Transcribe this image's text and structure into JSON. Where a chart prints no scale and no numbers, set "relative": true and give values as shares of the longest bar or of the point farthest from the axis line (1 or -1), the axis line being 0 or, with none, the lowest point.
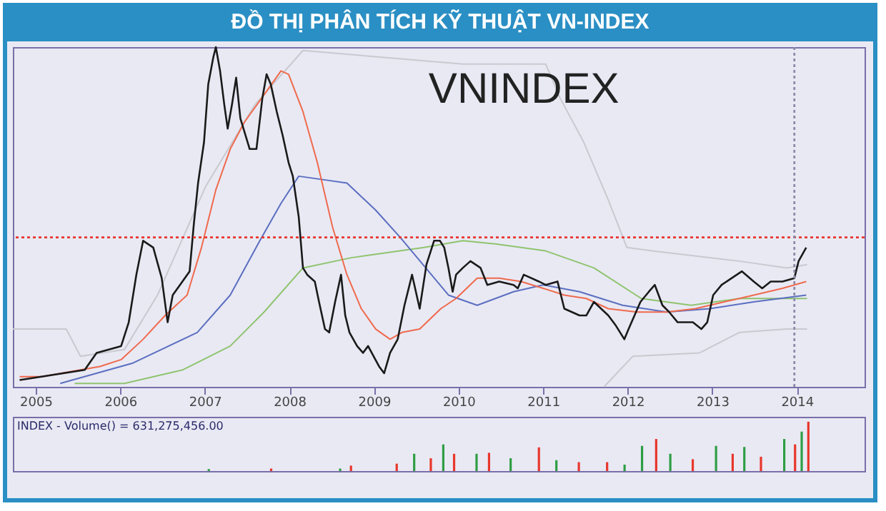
{
  "chart_data": [
    {
      "type": "line",
      "title": "ĐỒ THỊ PHÂN TÍCH KỸ THUẬT VN-INDEX",
      "annotations": [
        "VNINDEX"
      ],
      "relative": true,
      "xlim": [
        2004.73,
        2014.8
      ],
      "xticks": [
        2005,
        2006,
        2007,
        2008,
        2009,
        2010,
        2011,
        2012,
        2013,
        2014
      ],
      "tick_labels": "x",
      "grid": false,
      "series": [
        {
          "color": "#c9c9cf",
          "x": [
            2004.73,
            2005.36,
            2005.53,
            2006.05,
            2006.44,
            2007.01,
            2007.59,
            2008.16,
            2010.05,
            2011.03,
            2011.2,
            2011.48,
            2011.77,
            2011.99,
            2012.29,
            2013.32,
            2013.88,
            2014.12
          ],
          "values": [
            0.17,
            0.17,
            0.09,
            0.11,
            0.27,
            0.59,
            0.83,
            0.99,
            0.95,
            0.95,
            0.85,
            0.72,
            0.55,
            0.41,
            0.4,
            0.37,
            0.35,
            0.36
          ]
        },
        {
          "color": "#c9c9cf",
          "x": [
            2011.72,
            2012.06,
            2012.85,
            2013.32,
            2013.88,
            2014.12
          ],
          "values": [
            0.0,
            0.09,
            0.1,
            0.16,
            0.17,
            0.17
          ]
        },
        {
          "color": "#8fc46e",
          "x": [
            2005.46,
            2006.05,
            2006.74,
            2007.3,
            2007.7,
            2008.16,
            2008.73,
            2009.59,
            2010.05,
            2010.45,
            2011.03,
            2011.6,
            2012.16,
            2012.75,
            2013.32,
            2014.12
          ],
          "values": [
            0.01,
            0.01,
            0.05,
            0.12,
            0.22,
            0.35,
            0.38,
            0.41,
            0.43,
            0.42,
            0.4,
            0.35,
            0.26,
            0.24,
            0.26,
            0.26
          ]
        },
        {
          "color": "#5b6fc0",
          "x": [
            2005.29,
            2006.15,
            2006.91,
            2007.3,
            2007.65,
            2007.9,
            2008.11,
            2008.68,
            2009.02,
            2009.31,
            2009.88,
            2010.22,
            2010.65,
            2011.0,
            2011.43,
            2011.94,
            2012.46,
            2012.97,
            2013.49,
            2014.11
          ],
          "values": [
            0.01,
            0.07,
            0.16,
            0.27,
            0.43,
            0.54,
            0.62,
            0.6,
            0.52,
            0.44,
            0.27,
            0.24,
            0.28,
            0.3,
            0.28,
            0.24,
            0.22,
            0.23,
            0.25,
            0.27
          ]
        },
        {
          "color": "#ef6a4c",
          "x": [
            2004.81,
            2005.07,
            2005.76,
            2006.01,
            2006.27,
            2006.53,
            2006.79,
            2006.96,
            2007.13,
            2007.3,
            2007.47,
            2007.73,
            2007.9,
            2007.99,
            2008.16,
            2008.33,
            2008.51,
            2008.68,
            2008.85,
            2009.02,
            2009.19,
            2009.33,
            2009.54,
            2009.79,
            2009.97,
            2010.22,
            2010.48,
            2010.74,
            2011.0,
            2011.25,
            2011.51,
            2011.77,
            2012.11,
            2012.46,
            2012.8,
            2013.14,
            2013.49,
            2013.83,
            2014.11
          ],
          "values": [
            0.03,
            0.03,
            0.06,
            0.08,
            0.14,
            0.21,
            0.27,
            0.41,
            0.58,
            0.7,
            0.78,
            0.87,
            0.93,
            0.92,
            0.81,
            0.66,
            0.47,
            0.33,
            0.23,
            0.17,
            0.14,
            0.16,
            0.17,
            0.23,
            0.26,
            0.32,
            0.32,
            0.31,
            0.29,
            0.27,
            0.26,
            0.23,
            0.22,
            0.22,
            0.23,
            0.25,
            0.27,
            0.29,
            0.31
          ]
        },
        {
          "color": "#1a1a1a",
          "x": [
            2004.81,
            2005.07,
            2005.58,
            2005.72,
            2006.01,
            2006.1,
            2006.19,
            2006.27,
            2006.39,
            2006.49,
            2006.56,
            2006.62,
            2006.82,
            2006.87,
            2006.92,
            2006.99,
            2007.04,
            2007.1,
            2007.13,
            2007.18,
            2007.23,
            2007.27,
            2007.32,
            2007.37,
            2007.42,
            2007.53,
            2007.61,
            2007.68,
            2007.73,
            2007.78,
            2007.85,
            2007.92,
            2007.99,
            2008.04,
            2008.11,
            2008.16,
            2008.21,
            2008.3,
            2008.35,
            2008.42,
            2008.47,
            2008.54,
            2008.61,
            2008.66,
            2008.71,
            2008.8,
            2008.87,
            2008.93,
            2009.06,
            2009.12,
            2009.19,
            2009.28,
            2009.36,
            2009.45,
            2009.54,
            2009.62,
            2009.71,
            2009.78,
            2009.83,
            2009.88,
            2009.93,
            2009.97,
            2010.05,
            2010.14,
            2010.26,
            2010.34,
            2010.48,
            2010.65,
            2010.7,
            2010.77,
            2010.95,
            2011.03,
            2011.17,
            2011.25,
            2011.43,
            2011.51,
            2011.6,
            2011.77,
            2011.86,
            2011.96,
            2012.01,
            2012.08,
            2012.15,
            2012.25,
            2012.32,
            2012.41,
            2012.49,
            2012.59,
            2012.77,
            2012.87,
            2012.94,
            2013.01,
            2013.11,
            2013.23,
            2013.35,
            2013.49,
            2013.59,
            2013.69,
            2013.83,
            2013.97,
            2014.02,
            2014.11
          ],
          "values": [
            0.02,
            0.03,
            0.05,
            0.1,
            0.12,
            0.19,
            0.33,
            0.43,
            0.41,
            0.32,
            0.19,
            0.27,
            0.34,
            0.48,
            0.6,
            0.72,
            0.89,
            0.97,
            1.0,
            0.93,
            0.83,
            0.76,
            0.83,
            0.91,
            0.79,
            0.7,
            0.7,
            0.85,
            0.92,
            0.89,
            0.81,
            0.74,
            0.66,
            0.62,
            0.5,
            0.35,
            0.33,
            0.31,
            0.25,
            0.17,
            0.16,
            0.25,
            0.33,
            0.21,
            0.16,
            0.12,
            0.1,
            0.12,
            0.06,
            0.04,
            0.1,
            0.14,
            0.24,
            0.33,
            0.23,
            0.36,
            0.43,
            0.43,
            0.41,
            0.35,
            0.28,
            0.33,
            0.35,
            0.37,
            0.35,
            0.3,
            0.31,
            0.3,
            0.29,
            0.33,
            0.31,
            0.3,
            0.31,
            0.23,
            0.21,
            0.21,
            0.25,
            0.21,
            0.18,
            0.14,
            0.17,
            0.21,
            0.25,
            0.28,
            0.3,
            0.24,
            0.22,
            0.19,
            0.19,
            0.17,
            0.19,
            0.27,
            0.3,
            0.32,
            0.34,
            0.31,
            0.29,
            0.31,
            0.31,
            0.32,
            0.37,
            0.41
          ]
        }
      ],
      "ref_lines": [
        {
          "axis": "y",
          "value": 0.44,
          "color": "#e8372c",
          "line_style": "dotted"
        },
        {
          "axis": "x",
          "value": 2013.97,
          "color": "#8a8aa8",
          "line_style": "dotted"
        }
      ]
    },
    {
      "type": "bar",
      "annotations": [
        "INDEX - Volume() = 631,275,456.00"
      ],
      "relative": true,
      "xlim": [
        2004.73,
        2014.8
      ],
      "tick_labels": false,
      "grid": false,
      "series": [
        {
          "color": "#2e9e44",
          "x": [
            2007.0,
            2008.58,
            2009.47,
            2009.82,
            2010.22,
            2010.63,
            2011.18,
            2012.0,
            2012.21,
            2012.55,
            2013.1,
            2013.44,
            2013.92,
            2014.13
          ],
          "values": [
            0.04,
            0.05,
            0.35,
            0.54,
            0.35,
            0.26,
            0.22,
            0.13,
            0.51,
            0.35,
            0.51,
            0.49,
            0.65,
            0.8
          ]
        },
        {
          "color": "#e8372c",
          "x": [
            2007.75,
            2008.71,
            2009.26,
            2009.67,
            2009.95,
            2010.37,
            2010.97,
            2011.45,
            2011.79,
            2012.38,
            2012.82,
            2013.3,
            2013.64,
            2014.05,
            2014.21
          ],
          "values": [
            0.05,
            0.11,
            0.15,
            0.26,
            0.35,
            0.37,
            0.48,
            0.18,
            0.18,
            0.65,
            0.24,
            0.35,
            0.29,
            0.54,
            1.0
          ]
        }
      ]
    }
  ]
}
